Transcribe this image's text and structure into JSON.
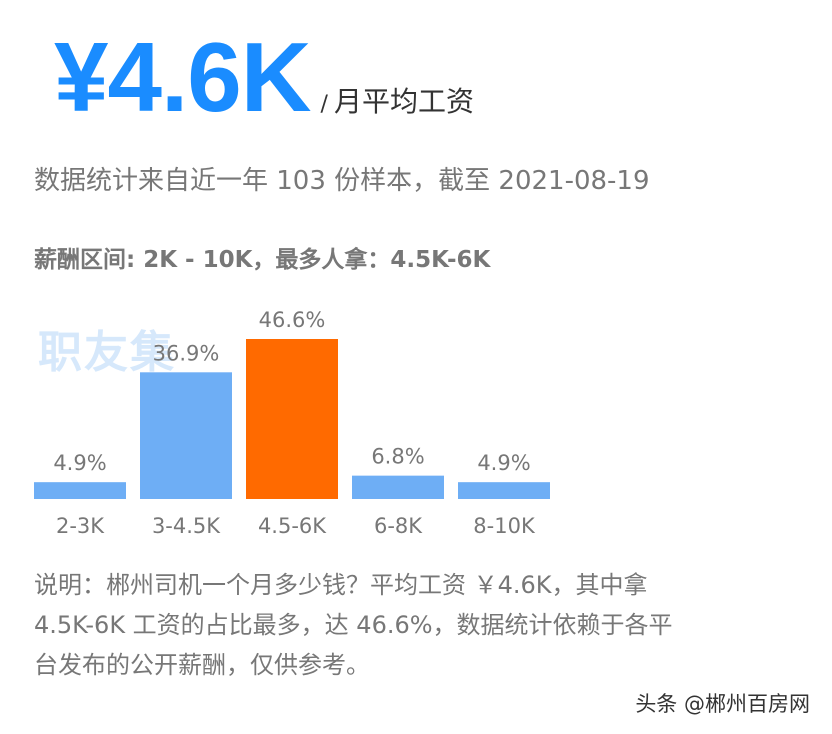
{
  "headline": {
    "value": "¥4.6K",
    "slash": "/",
    "unit": "月平均工资"
  },
  "summary": "数据统计来自近一年 103 份样本，截至 2021-08-19",
  "range_line": "薪酬区间: 2K - 10K，最多人拿：4.5K-6K",
  "watermark": "职友集",
  "chart_data": {
    "type": "bar",
    "categories": [
      "2-3K",
      "3-4.5K",
      "4.5-6K",
      "6-8K",
      "8-10K"
    ],
    "values": [
      4.9,
      36.9,
      46.6,
      6.8,
      4.9
    ],
    "data_labels": [
      "4.9%",
      "36.9%",
      "46.6%",
      "6.8%",
      "4.9%"
    ],
    "highlight_index": 2,
    "ylim": [
      0,
      46.6
    ],
    "colors": {
      "default": "#6eaef5",
      "highlight": "#ff6a00"
    },
    "title": "",
    "xlabel": "",
    "ylabel": ""
  },
  "note": {
    "line1": "说明：郴州司机一个月多少钱？平均工资 ￥4.6K，其中拿",
    "line2": "4.5K-6K 工资的占比最多，达 46.6%，数据统计依赖于各平",
    "line3": "台发布的公开薪酬，仅供参考。"
  },
  "source": "头条 @郴州百房网",
  "colors": {
    "accent": "#1a8cff",
    "text": "#777777"
  }
}
